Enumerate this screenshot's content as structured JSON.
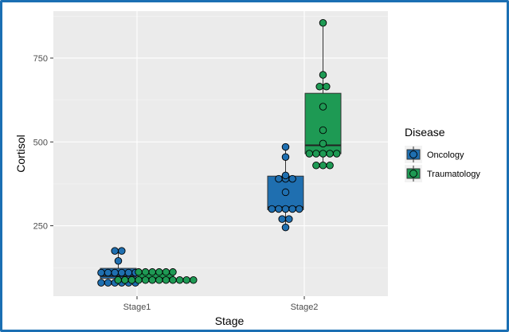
{
  "chart_data": {
    "type": "boxplot-dotplot",
    "xlabel": "Stage",
    "ylabel": "Cortisol",
    "categories": [
      "Stage1",
      "Stage2"
    ],
    "yticks": [
      250,
      500,
      750
    ],
    "ylim": [
      40,
      890
    ],
    "grid": true,
    "legend": {
      "title": "Disease",
      "placement": "right",
      "items": [
        {
          "name": "Oncology",
          "color": "#1f6fb0"
        },
        {
          "name": "Traumatology",
          "color": "#1e9a54"
        }
      ]
    },
    "series": [
      {
        "name": "Oncology",
        "color": "#1f6fb0",
        "boxes": [
          {
            "category": "Stage1",
            "min": 80,
            "q1": 93,
            "median": 100,
            "q3": 123,
            "max": 175
          },
          {
            "category": "Stage2",
            "min": 245,
            "q1": 298,
            "median": 305,
            "q3": 398,
            "max": 485
          }
        ],
        "points": [
          {
            "category": "Stage1",
            "values": [
              80,
              80,
              80,
              80,
              80,
              80,
              110,
              110,
              110,
              110,
              110,
              110,
              145,
              175,
              175
            ]
          },
          {
            "category": "Stage2",
            "values": [
              245,
              270,
              270,
              300,
              300,
              300,
              300,
              300,
              350,
              390,
              390,
              390,
              400,
              455,
              485
            ]
          }
        ]
      },
      {
        "name": "Traumatology",
        "color": "#1e9a54",
        "boxes": [
          {
            "category": "Stage1",
            "min": 88,
            "q1": 90,
            "median": 93,
            "q3": 108,
            "max": 112
          },
          {
            "category": "Stage2",
            "min": 430,
            "q1": 465,
            "median": 490,
            "q3": 645,
            "max": 855
          }
        ],
        "points": [
          {
            "category": "Stage1",
            "values": [
              88,
              88,
              88,
              88,
              88,
              88,
              88,
              88,
              88,
              88,
              88,
              88,
              112,
              112,
              112,
              112,
              112,
              112
            ]
          },
          {
            "category": "Stage2",
            "values": [
              430,
              430,
              430,
              465,
              465,
              465,
              465,
              465,
              495,
              535,
              605,
              665,
              665,
              700,
              855
            ]
          }
        ]
      }
    ]
  }
}
